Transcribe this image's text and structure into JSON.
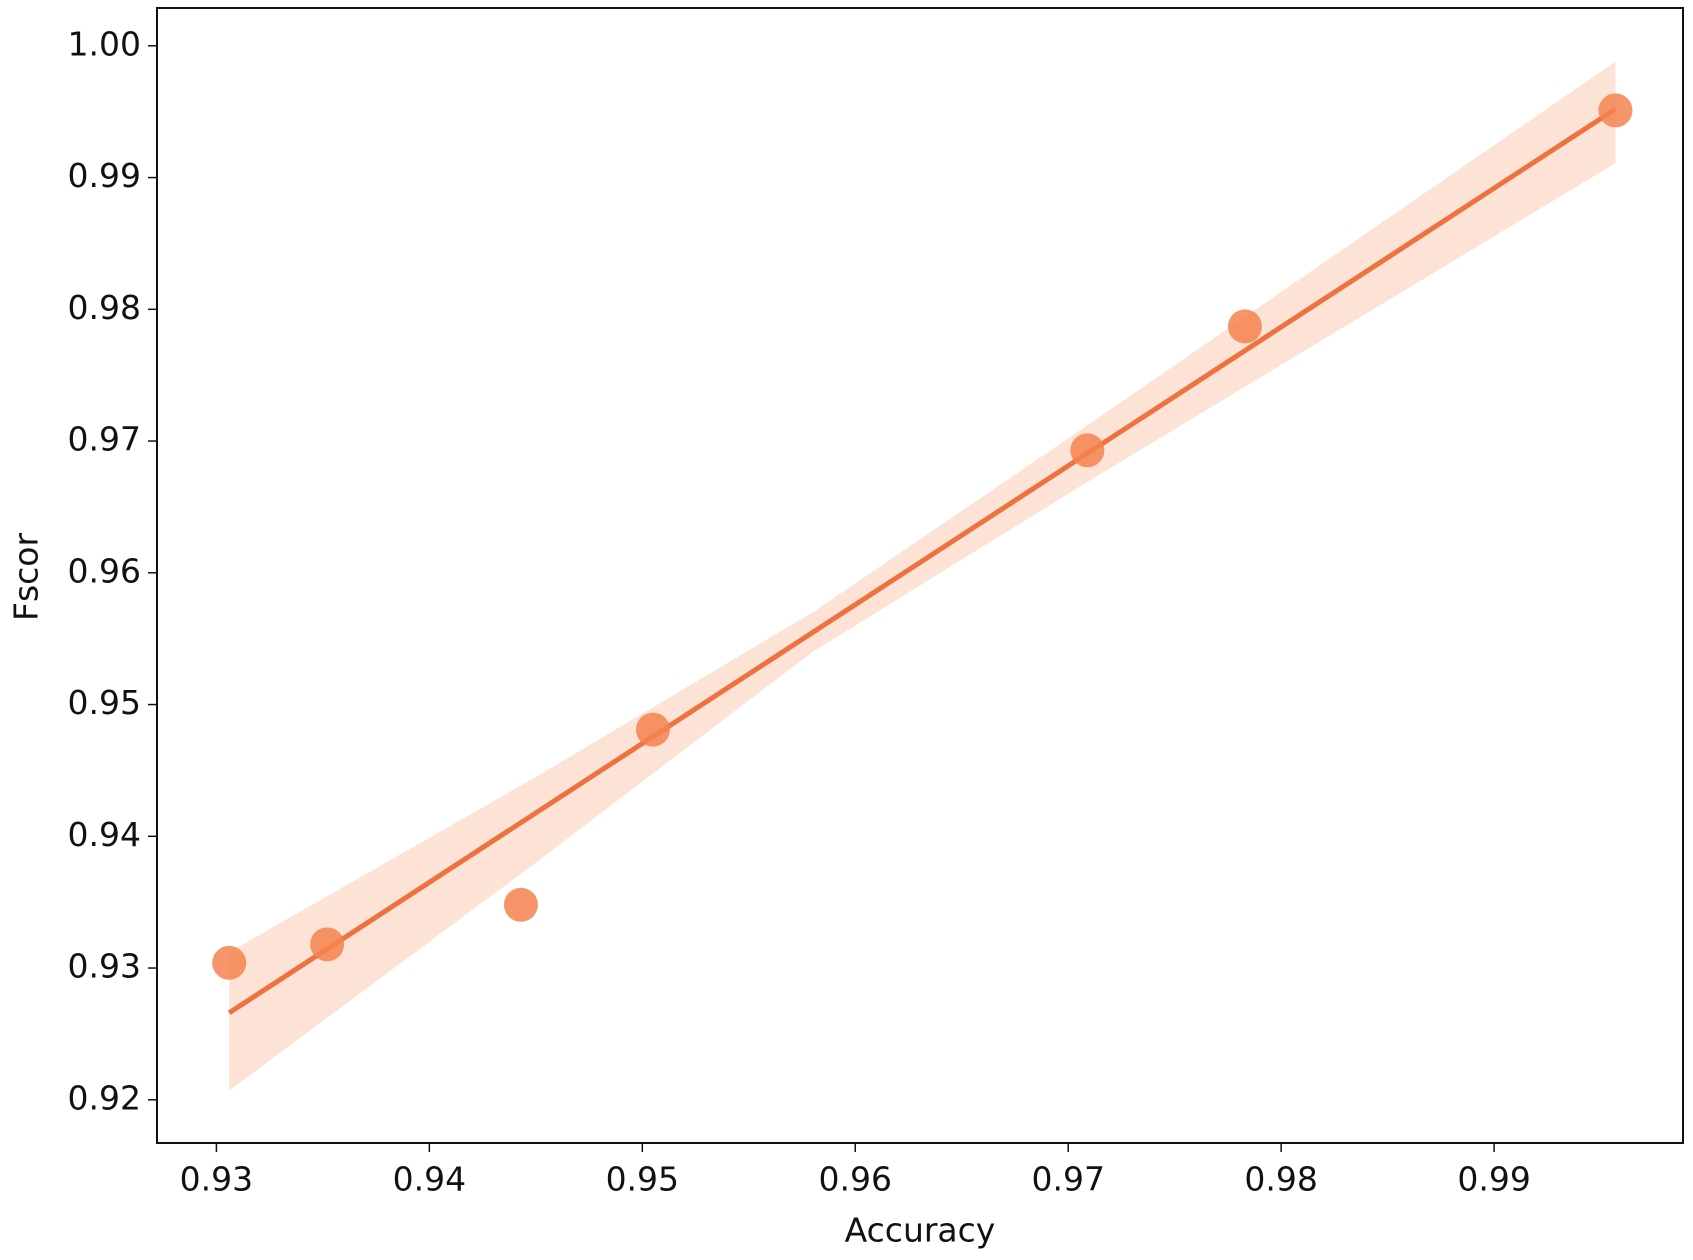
{
  "chart_data": {
    "type": "scatter",
    "x_label": "Accuracy",
    "y_label": "Fscor",
    "x": [
      0.9306,
      0.9352,
      0.9443,
      0.9505,
      0.9709,
      0.9783,
      0.9957
    ],
    "series": [
      {
        "color": "#f4834f",
        "values": [
          0.9304,
          0.9318,
          0.9348,
          0.9481,
          0.9693,
          0.9787,
          0.9951
        ]
      }
    ],
    "fit": {
      "color": "#ee7140",
      "x": [
        0.9306,
        0.9957
      ],
      "y": [
        0.9266,
        0.9952
      ]
    },
    "confidence_band": {
      "color": "#fde3d6",
      "x": [
        0.9306,
        0.945,
        0.958,
        0.971,
        0.9957
      ],
      "lower": [
        0.9207,
        0.938,
        0.954,
        0.967,
        0.9911
      ],
      "upper": [
        0.9312,
        0.9445,
        0.957,
        0.9713,
        0.9988
      ]
    },
    "xlim": [
      0.92721,
      0.99887
    ],
    "ylim": [
      0.91672,
      1.00287
    ],
    "xticks": [
      0.93,
      0.94,
      0.95,
      0.96,
      0.97,
      0.98,
      0.99
    ],
    "yticks": [
      0.92,
      0.93,
      0.94,
      0.95,
      0.96,
      0.97,
      0.98,
      0.99,
      {
        "value": 1,
        "label": "1.00"
      }
    ],
    "grid": false
  }
}
